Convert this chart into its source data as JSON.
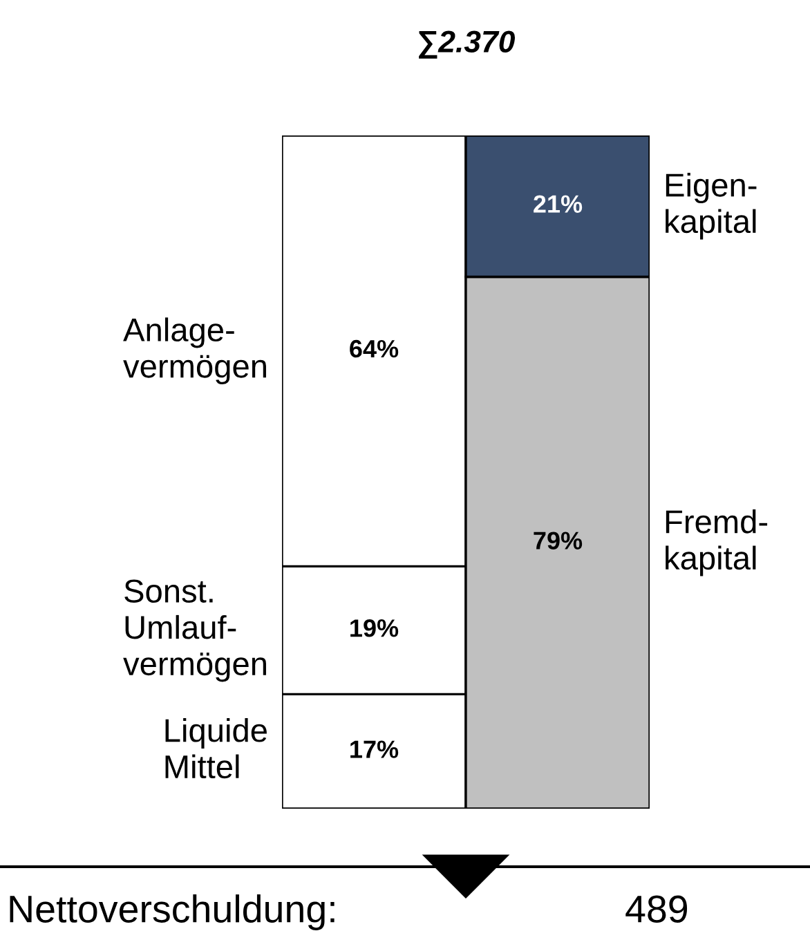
{
  "chart_data": {
    "type": "bar",
    "title": "∑2.370",
    "stacked": true,
    "categories": [
      null,
      null
    ],
    "series": [
      {
        "name": "Liquide\nMittel",
        "color": "#ffffff",
        "values": [
          17,
          null
        ],
        "value_labels": [
          "17%",
          null
        ]
      },
      {
        "name": "Sonst.\nUmlauf-\nvermögen",
        "color": "#ffffff",
        "values": [
          19,
          null
        ],
        "value_labels": [
          "19%",
          null
        ]
      },
      {
        "name": "Anlage-\nvermögen",
        "color": "#ffffff",
        "values": [
          64,
          null
        ],
        "value_labels": [
          "64%",
          null
        ]
      },
      {
        "name": "Fremd-\nkapital",
        "color": "#c0c0c0",
        "values": [
          null,
          79
        ],
        "value_labels": [
          null,
          "79%"
        ]
      },
      {
        "name": "Eigen-\nkapital",
        "color": "#3a4f6f",
        "values": [
          null,
          21
        ],
        "value_labels": [
          null,
          "21%"
        ]
      }
    ],
    "annotations": [
      "Nettoverschuldung:",
      "489"
    ]
  }
}
